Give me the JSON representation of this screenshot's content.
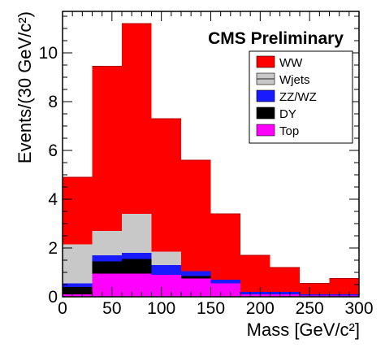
{
  "chart_data": {
    "type": "bar",
    "stacked": true,
    "histogram": true,
    "annotation": "CMS Preliminary",
    "xlabel": "Mass [GeV/c²]",
    "ylabel": "Events/(30 GeV/c²)",
    "xlim": [
      0,
      300
    ],
    "ylim": [
      0,
      11.7
    ],
    "bin_edges": [
      0,
      30,
      60,
      90,
      120,
      150,
      180,
      210,
      240,
      270,
      300
    ],
    "x_ticks": [
      0,
      50,
      100,
      150,
      200,
      250,
      300
    ],
    "x_tick_labels": [
      "0",
      "50",
      "100",
      "150",
      "200",
      "250",
      "300"
    ],
    "y_ticks": [
      0,
      2,
      4,
      6,
      8,
      10
    ],
    "y_tick_labels": [
      "0",
      "2",
      "4",
      "6",
      "8",
      "10"
    ],
    "legend_position": "top-right",
    "series": [
      {
        "name": "Top",
        "color": "#ff00ff",
        "values": [
          0.1,
          0.95,
          0.95,
          0.9,
          0.75,
          0.55,
          0.1,
          0.1,
          0.05,
          0.05
        ]
      },
      {
        "name": "DY",
        "color": "#000000",
        "values": [
          0.3,
          0.5,
          0.6,
          0.0,
          0.1,
          0.0,
          0.0,
          0.0,
          0.0,
          0.0
        ]
      },
      {
        "name": "ZZ/WZ",
        "color": "#1a1aff",
        "values": [
          0.15,
          0.25,
          0.25,
          0.4,
          0.2,
          0.15,
          0.1,
          0.1,
          0.05,
          0.05
        ]
      },
      {
        "name": "Wjets",
        "color": "#c8c8c8",
        "values": [
          1.6,
          1.0,
          1.6,
          0.55,
          0.0,
          0.0,
          0.0,
          0.0,
          0.0,
          0.0
        ]
      },
      {
        "name": "WW",
        "color": "#ff0000",
        "values": [
          2.75,
          6.75,
          7.8,
          5.45,
          4.55,
          2.7,
          1.5,
          1.0,
          0.45,
          0.65
        ]
      }
    ],
    "legend_order": [
      "WW",
      "Wjets",
      "ZZ/WZ",
      "DY",
      "Top"
    ]
  }
}
